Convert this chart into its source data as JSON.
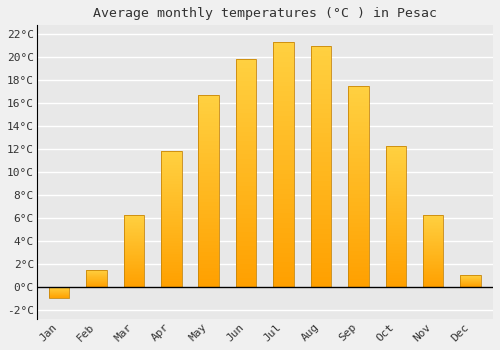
{
  "title": "Average monthly temperatures (°C ) in Pesac",
  "months": [
    "Jan",
    "Feb",
    "Mar",
    "Apr",
    "May",
    "Jun",
    "Jul",
    "Aug",
    "Sep",
    "Oct",
    "Nov",
    "Dec"
  ],
  "values": [
    -1.0,
    1.5,
    6.3,
    11.8,
    16.7,
    19.9,
    21.3,
    21.0,
    17.5,
    12.3,
    6.3,
    1.0
  ],
  "bar_color_light": "#FFD040",
  "bar_color_dark": "#FFA000",
  "bar_edge_color": "#C8860A",
  "background_color": "#F0F0F0",
  "plot_bg_color": "#E8E8E8",
  "grid_color": "#FFFFFF",
  "yticks": [
    -2,
    0,
    2,
    4,
    6,
    8,
    10,
    12,
    14,
    16,
    18,
    20,
    22
  ],
  "ylim": [
    -2.8,
    22.8
  ],
  "title_fontsize": 9.5,
  "tick_fontsize": 8,
  "bar_width": 0.55
}
